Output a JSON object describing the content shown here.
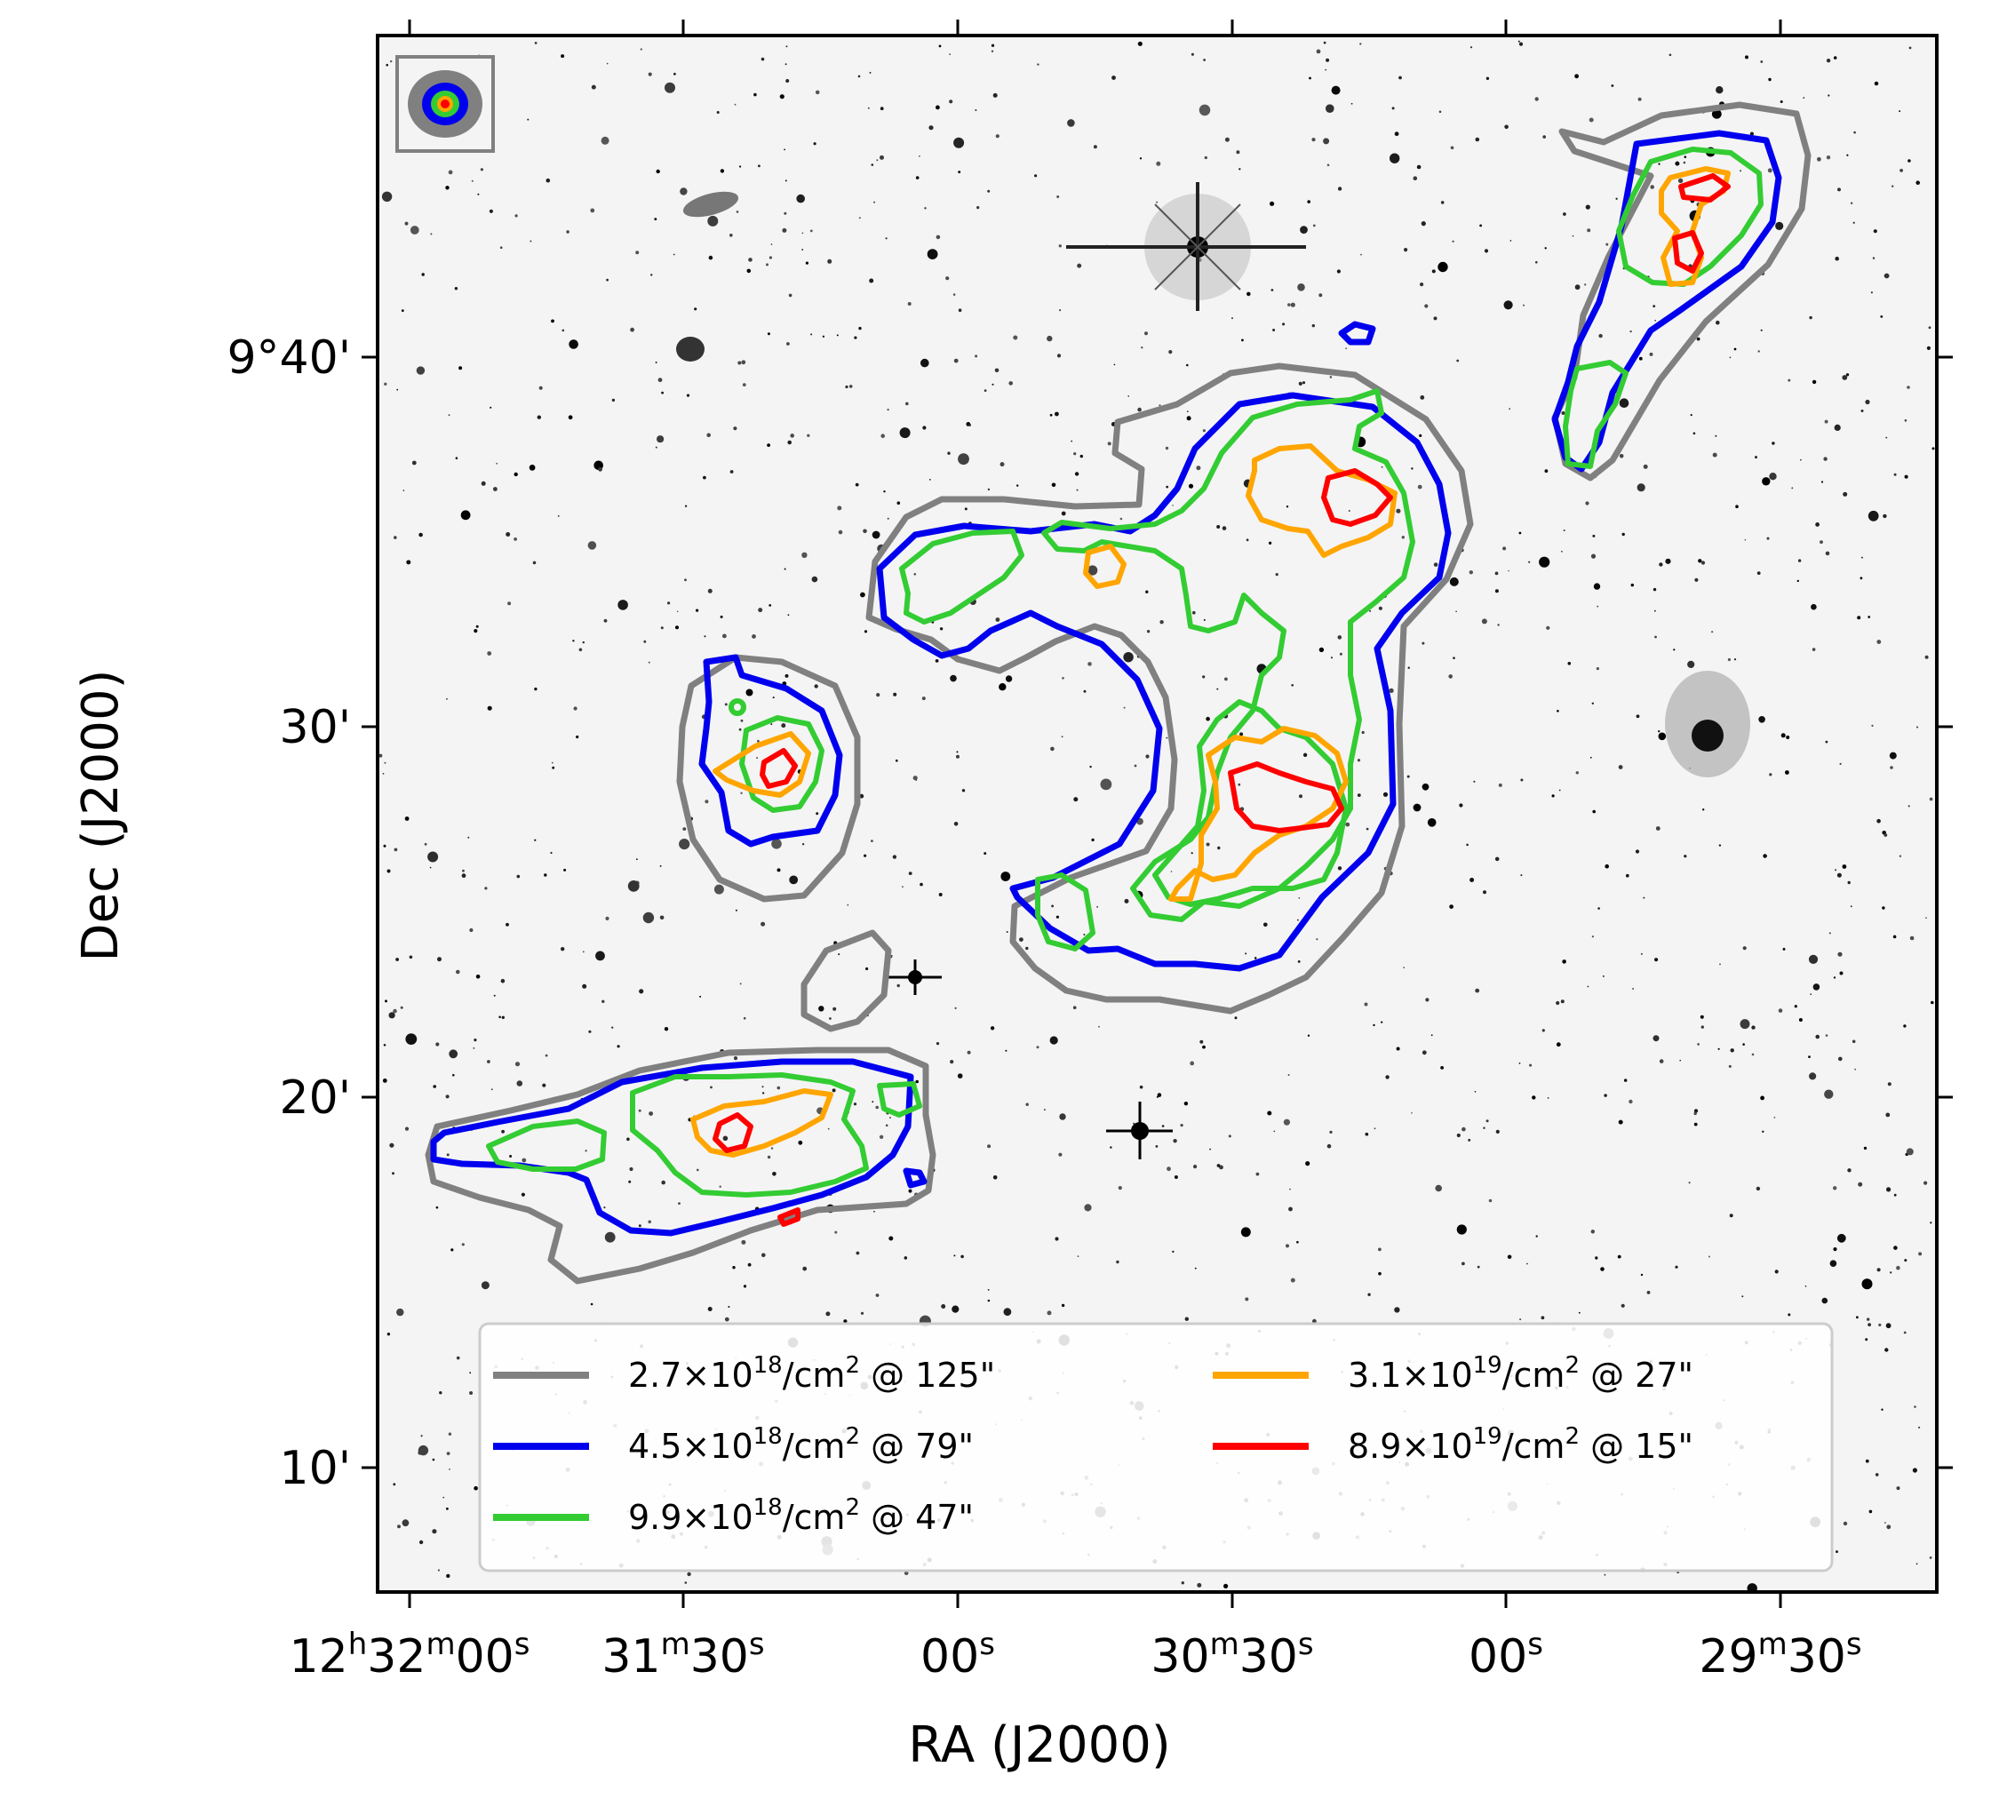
{
  "chart_data": {
    "type": "contour",
    "xlabel": "RA (J2000)",
    "ylabel": "Dec (J2000)",
    "x_tick_labels": [
      {
        "value": "12h32m00s",
        "parts": [
          [
            "12",
            "n"
          ],
          [
            "h",
            "s"
          ],
          [
            "32",
            "n"
          ],
          [
            "m",
            "s"
          ],
          [
            "00",
            "n"
          ],
          [
            "s",
            "s"
          ]
        ]
      },
      {
        "value": "31m30s",
        "parts": [
          [
            "31",
            "n"
          ],
          [
            "m",
            "s"
          ],
          [
            "30",
            "n"
          ],
          [
            "s",
            "s"
          ]
        ]
      },
      {
        "value": "00s",
        "parts": [
          [
            "00",
            "n"
          ],
          [
            "s",
            "s"
          ]
        ]
      },
      {
        "value": "30m30s",
        "parts": [
          [
            "30",
            "n"
          ],
          [
            "m",
            "s"
          ],
          [
            "30",
            "n"
          ],
          [
            "s",
            "s"
          ]
        ]
      },
      {
        "value": "00s",
        "parts": [
          [
            "00",
            "n"
          ],
          [
            "s",
            "s"
          ]
        ]
      },
      {
        "value": "29m30s",
        "parts": [
          [
            "29",
            "n"
          ],
          [
            "m",
            "s"
          ],
          [
            "30",
            "n"
          ],
          [
            "s",
            "s"
          ]
        ]
      }
    ],
    "y_tick_labels": [
      "9°40'",
      "30'",
      "20'",
      "10'"
    ],
    "legend": {
      "placement": "lower-center",
      "columns": 2,
      "entries": [
        {
          "color": "#808080",
          "base": "2.7×10",
          "exp": "18",
          "unit": "/cm",
          "unit_exp": "2",
          "suffix": " @ 125\""
        },
        {
          "color": "#0000ee",
          "base": "4.5×10",
          "exp": "18",
          "unit": "/cm",
          "unit_exp": "2",
          "suffix": " @ 79\""
        },
        {
          "color": "#33cc33",
          "base": "9.9×10",
          "exp": "18",
          "unit": "/cm",
          "unit_exp": "2",
          "suffix": " @ 47\""
        },
        {
          "color": "#ffa500",
          "base": "3.1×10",
          "exp": "19",
          "unit": "/cm",
          "unit_exp": "2",
          "suffix": " @ 27\""
        },
        {
          "color": "#ff0000",
          "base": "8.9×10",
          "exp": "19",
          "unit": "/cm",
          "unit_exp": "2",
          "suffix": " @ 15\""
        }
      ]
    },
    "contour_levels": [
      {
        "level": "2.7×10^18/cm^2",
        "beam": "125\"",
        "color": "#808080"
      },
      {
        "level": "4.5×10^18/cm^2",
        "beam": "79\"",
        "color": "#0000ee"
      },
      {
        "level": "9.9×10^18/cm^2",
        "beam": "47\"",
        "color": "#33cc33"
      },
      {
        "level": "3.1×10^19/cm^2",
        "beam": "27\"",
        "color": "#ffa500"
      },
      {
        "level": "8.9×10^19/cm^2",
        "beam": "15\"",
        "color": "#ff0000"
      }
    ],
    "background": "greyscale optical image with stars and galaxies",
    "beam_inset": "top-left"
  }
}
